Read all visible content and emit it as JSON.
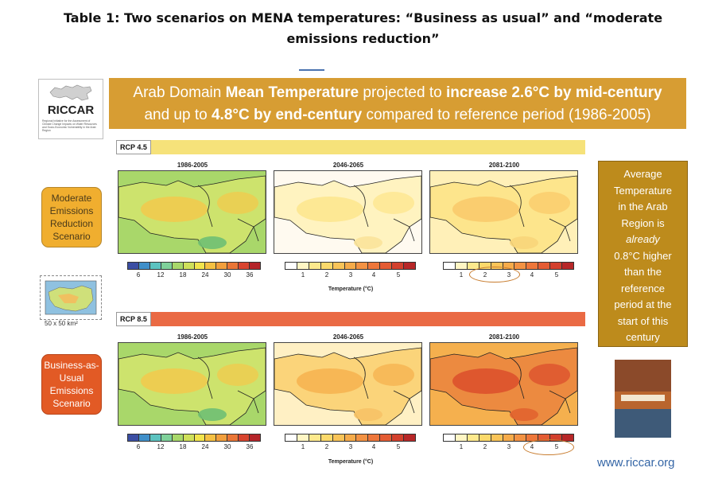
{
  "caption": {
    "line1": "Table 1: Two scenarios on MENA temperatures: “Business as usual” and “moderate",
    "line2": "emissions reduction”"
  },
  "logo": {
    "name": "RICCAR",
    "subtitle": "Regional Initiative for the Assessment of Climate Change Impacts on Water Resources and Socio-Economic Vulnerability in the Arab Region"
  },
  "banner": {
    "l1a": "Arab Domain ",
    "l1b": "Mean Temperature",
    "l1c": " projected to ",
    "l1d": "increase 2.6°C by mid-century",
    "l2a": "and up to ",
    "l2b": "4.8°C by end-century",
    "l2c": " compared to reference period (1986-2005)"
  },
  "scenarios": {
    "moderate": "Moderate Emissions Reduction Scenario",
    "bau": "Business-as-Usual Emissions Scenario"
  },
  "rcp45": {
    "label": "RCP 4.5",
    "periods": [
      "1986-2005",
      "2046-2065",
      "2081-2100"
    ],
    "circled_ticks": [
      "2",
      "3"
    ]
  },
  "rcp85": {
    "label": "RCP 8.5",
    "periods": [
      "1986-2005",
      "2046-2065",
      "2081-2100"
    ],
    "circled_ticks": [
      "4",
      "5"
    ]
  },
  "colorbars": {
    "absolute": {
      "colors": [
        "#3b4ea3",
        "#3f8fc9",
        "#5cc3c0",
        "#7fd19a",
        "#a8d86a",
        "#cfe05a",
        "#f2e44c",
        "#f5c042",
        "#f29f3c",
        "#ea7636",
        "#d8452f",
        "#b5252a"
      ],
      "ticks": [
        "6",
        "12",
        "18",
        "24",
        "30",
        "36"
      ]
    },
    "change": {
      "colors": [
        "#ffffff",
        "#fff6c4",
        "#fde98d",
        "#fbd96b",
        "#f9c458",
        "#f6ab4a",
        "#f39243",
        "#ee773b",
        "#e45c34",
        "#d3402d",
        "#b72728"
      ],
      "ticks": [
        "1",
        "2",
        "3",
        "4",
        "5"
      ],
      "axis_label": "Temperature (°C)"
    }
  },
  "thumb_caption": "50 x 50 km²",
  "avg_box": [
    "Average",
    "Temperature",
    "in the Arab",
    "Region is",
    "already",
    "0.8°C higher",
    "than the",
    "reference",
    "period at the",
    "start of this",
    "century"
  ],
  "url": "www.riccar.org"
}
